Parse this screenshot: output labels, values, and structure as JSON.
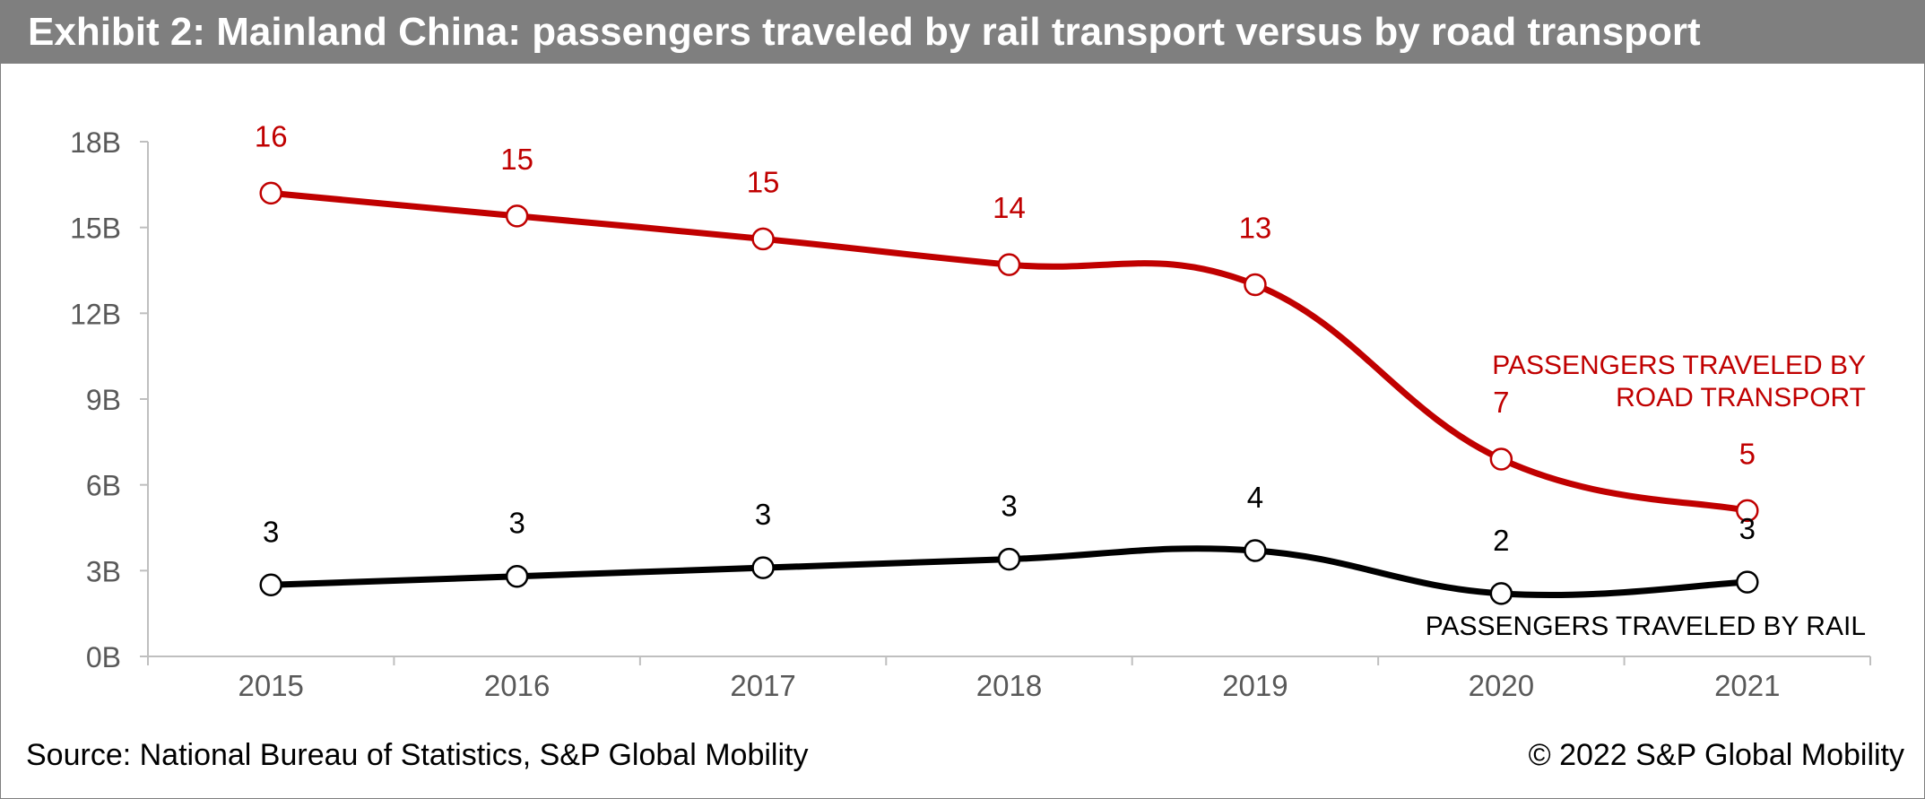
{
  "header": {
    "title": "Exhibit 2: Mainland China: passengers traveled by rail transport versus by road transport"
  },
  "footer": {
    "source": "Source: National Bureau of Statistics, S&P Global Mobility",
    "copyright": "© 2022 S&P Global Mobility"
  },
  "colors": {
    "header_bg": "#7f7f7f",
    "road": "#c00000",
    "rail": "#000000",
    "axis_text": "#595959"
  },
  "chart_data": {
    "type": "line",
    "categories": [
      "2015",
      "2016",
      "2017",
      "2018",
      "2019",
      "2020",
      "2021"
    ],
    "y_tick_labels": [
      "0B",
      "3B",
      "6B",
      "9B",
      "12B",
      "15B",
      "18B"
    ],
    "ylim": [
      0,
      18
    ],
    "ylabel": "",
    "xlabel": "",
    "grid": false,
    "smooth": true,
    "series": [
      {
        "name": "PASSENGERS TRAVELED BY ROAD TRANSPORT",
        "label_lines": [
          "PASSENGERS TRAVELED BY",
          "ROAD TRANSPORT"
        ],
        "color": "#c00000",
        "values": [
          16.2,
          15.4,
          14.6,
          13.7,
          13.0,
          6.9,
          5.1
        ],
        "data_labels": [
          "16",
          "15",
          "15",
          "14",
          "13",
          "7",
          "5"
        ]
      },
      {
        "name": "PASSENGERS TRAVELED BY RAIL",
        "label_lines": [
          "PASSENGERS TRAVELED BY RAIL"
        ],
        "color": "#000000",
        "values": [
          2.5,
          2.8,
          3.1,
          3.4,
          3.7,
          2.2,
          2.6
        ],
        "data_labels": [
          "3",
          "3",
          "3",
          "3",
          "4",
          "2",
          "3"
        ]
      }
    ]
  }
}
